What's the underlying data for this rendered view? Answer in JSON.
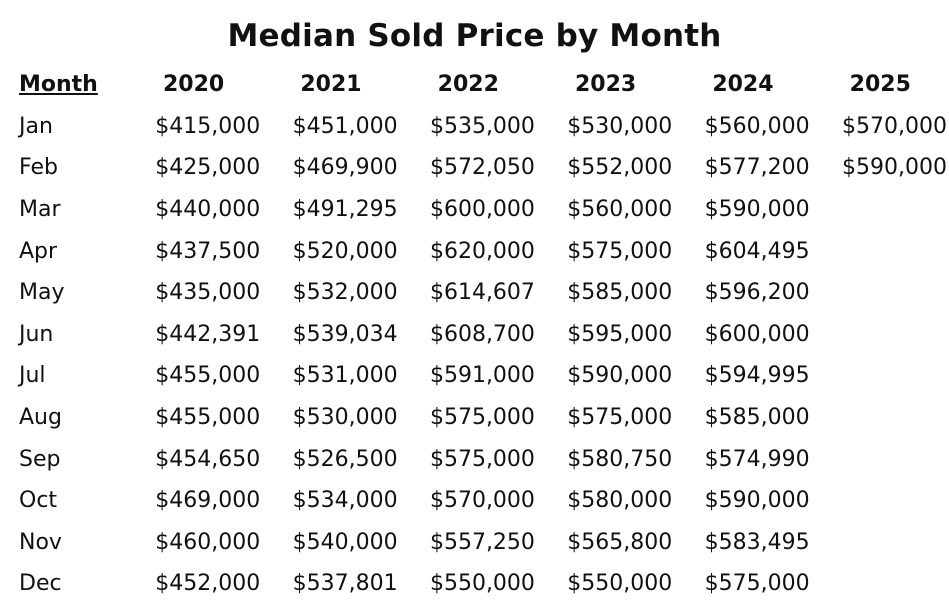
{
  "chart_data": {
    "type": "table",
    "title": "Median Sold Price by Month",
    "header": [
      "Month",
      "2020",
      "2021",
      "2022",
      "2023",
      "2024",
      "2025"
    ],
    "rows": [
      [
        "Jan",
        "$415,000",
        "$451,000",
        "$535,000",
        "$530,000",
        "$560,000",
        "$570,000"
      ],
      [
        "Feb",
        "$425,000",
        "$469,900",
        "$572,050",
        "$552,000",
        "$577,200",
        "$590,000"
      ],
      [
        "Mar",
        "$440,000",
        "$491,295",
        "$600,000",
        "$560,000",
        "$590,000",
        ""
      ],
      [
        "Apr",
        "$437,500",
        "$520,000",
        "$620,000",
        "$575,000",
        "$604,495",
        ""
      ],
      [
        "May",
        "$435,000",
        "$532,000",
        "$614,607",
        "$585,000",
        "$596,200",
        ""
      ],
      [
        "Jun",
        "$442,391",
        "$539,034",
        "$608,700",
        "$595,000",
        "$600,000",
        ""
      ],
      [
        "Jul",
        "$455,000",
        "$531,000",
        "$591,000",
        "$590,000",
        "$594,995",
        ""
      ],
      [
        "Aug",
        "$455,000",
        "$530,000",
        "$575,000",
        "$575,000",
        "$585,000",
        ""
      ],
      [
        "Sep",
        "$454,650",
        "$526,500",
        "$575,000",
        "$580,750",
        "$574,990",
        ""
      ],
      [
        "Oct",
        "$469,000",
        "$534,000",
        "$570,000",
        "$580,000",
        "$590,000",
        ""
      ],
      [
        "Nov",
        "$460,000",
        "$540,000",
        "$557,250",
        "$565,800",
        "$583,495",
        ""
      ],
      [
        "Dec",
        "$452,000",
        "$537,801",
        "$550,000",
        "$550,000",
        "$575,000",
        ""
      ]
    ]
  }
}
